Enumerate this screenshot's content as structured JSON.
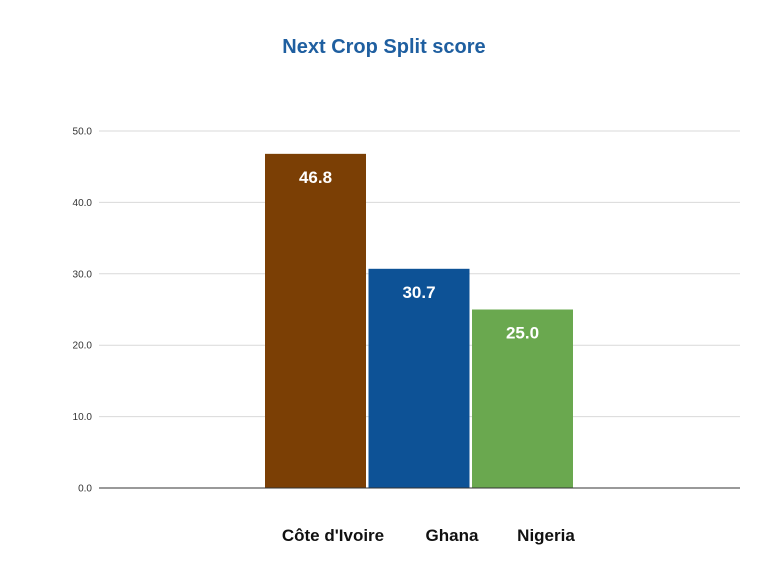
{
  "chart_data": {
    "type": "bar",
    "title": "Next Crop Split score",
    "categories": [
      "Côte d'Ivoire",
      "Ghana",
      "Nigeria"
    ],
    "values": [
      46.8,
      30.7,
      25.0
    ],
    "data_labels": [
      "46.8",
      "30.7",
      "25.0"
    ],
    "colors": [
      "#7b3f05",
      "#0d5296",
      "#6aa84f"
    ],
    "xlabel": "",
    "ylabel": "",
    "ylim": [
      0,
      50
    ],
    "yticks": [
      0,
      10,
      20,
      30,
      40,
      50
    ],
    "ytick_labels": [
      "0.0",
      "10.0",
      "20.0",
      "30.0",
      "40.0",
      "50.0"
    ],
    "grid": true,
    "legend": "none"
  }
}
